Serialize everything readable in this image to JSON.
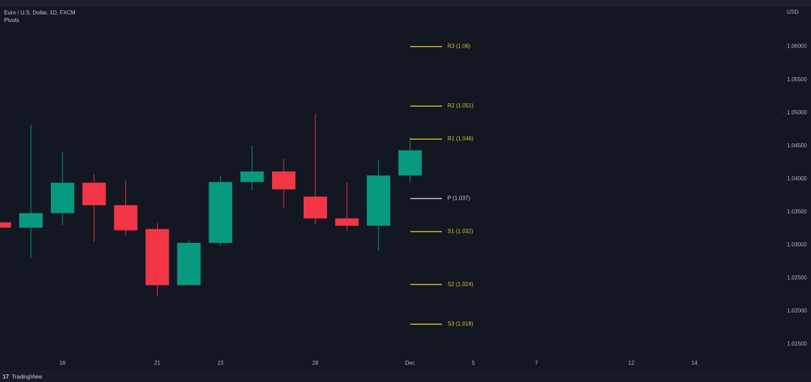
{
  "chart_data": {
    "type": "candlestick",
    "title": "Euro / U.S. Dollar, 1D, FXCM",
    "subtitle": "Pivots",
    "y_axis_label": "USD",
    "categories": [
      null,
      null,
      "16",
      null,
      null,
      "21",
      null,
      "23",
      null,
      null,
      "28",
      null,
      null,
      "Dec",
      null,
      "5",
      null,
      "7",
      null,
      null,
      "12",
      null,
      "14"
    ],
    "open": [
      1.0334,
      1.0326,
      1.0348,
      1.0394,
      1.036,
      1.0324,
      1.0239,
      1.0303,
      1.0395,
      1.0411,
      1.0373,
      1.034,
      1.0329,
      1.0405,
      null,
      null,
      null,
      null,
      null,
      null,
      null,
      null,
      null
    ],
    "high": [
      1.0336,
      1.0482,
      1.044,
      1.0407,
      1.0397,
      1.0333,
      1.0307,
      1.0405,
      1.045,
      1.043,
      1.0498,
      1.0394,
      1.0428,
      1.0463,
      null,
      null,
      null,
      null,
      null,
      null,
      null,
      null,
      null
    ],
    "low": [
      1.0325,
      1.028,
      1.033,
      1.0305,
      1.0314,
      1.0223,
      1.0239,
      1.0298,
      1.0382,
      1.0355,
      1.0331,
      1.0321,
      1.0291,
      1.0394,
      null,
      null,
      null,
      null,
      null,
      null,
      null,
      null,
      null
    ],
    "close": [
      1.0326,
      1.0348,
      1.0394,
      1.036,
      1.0322,
      1.0239,
      1.0303,
      1.0395,
      1.0411,
      1.0384,
      1.034,
      1.0329,
      1.0405,
      1.0443,
      null,
      null,
      null,
      null,
      null,
      null,
      null,
      null,
      null
    ],
    "up_color": "#089981",
    "down_color": "#f23645",
    "ylim": [
      1.0129,
      1.066
    ],
    "yticks": [
      {
        "value": 1.015,
        "label": "1.01500"
      },
      {
        "value": 1.02,
        "label": "1.02000"
      },
      {
        "value": 1.025,
        "label": "1.02500"
      },
      {
        "value": 1.03,
        "label": "1.03000"
      },
      {
        "value": 1.035,
        "label": "1.03500"
      },
      {
        "value": 1.04,
        "label": "1.04000"
      },
      {
        "value": 1.045,
        "label": "1.04500"
      },
      {
        "value": 1.05,
        "label": "1.05000"
      },
      {
        "value": 1.055,
        "label": "1.05500"
      },
      {
        "value": 1.06,
        "label": "1.06000"
      }
    ],
    "pivots": [
      {
        "value": 1.06,
        "label": "R3 (1.06)",
        "color": "#d6c428"
      },
      {
        "value": 1.051,
        "label": "R2 (1.051)",
        "color": "#d6c428"
      },
      {
        "value": 1.046,
        "label": "R1 (1.046)",
        "color": "#d6c428"
      },
      {
        "value": 1.037,
        "label": "P (1.037)",
        "color": "#c8cbd2"
      },
      {
        "value": 1.032,
        "label": "S1 (1.032)",
        "color": "#d6c428"
      },
      {
        "value": 1.024,
        "label": "S2 (1.024)",
        "color": "#d6c428"
      },
      {
        "value": 1.018,
        "label": "S3 (1.018)",
        "color": "#d6c428"
      }
    ]
  },
  "footer": {
    "brand": "TradingView"
  }
}
